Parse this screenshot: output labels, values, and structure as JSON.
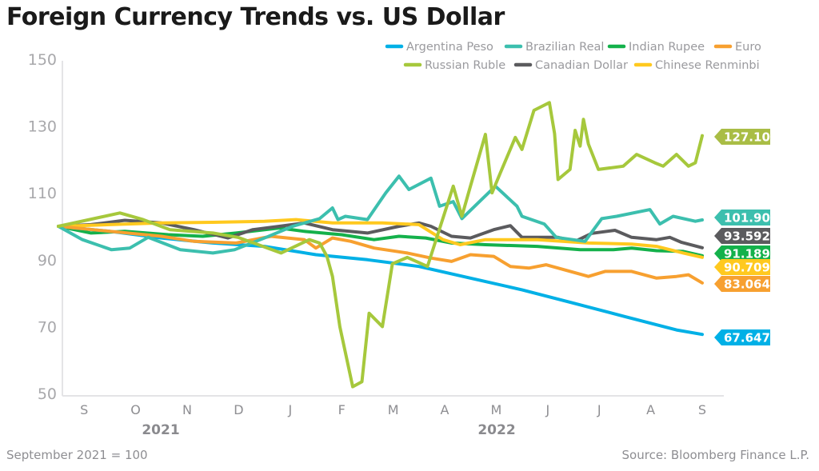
{
  "chart_data": {
    "type": "line",
    "title": "Foreign Currency Trends vs. US Dollar",
    "ylim": [
      50,
      150
    ],
    "yticks": [
      "150",
      "130",
      "110",
      "90",
      "70",
      "50"
    ],
    "x_month_labels": [
      "S",
      "O",
      "N",
      "D",
      "J",
      "F",
      "M",
      "A",
      "M",
      "J",
      "J",
      "A",
      "S"
    ],
    "x_year_labels": [
      "2021",
      "2022"
    ],
    "grid": false,
    "legend_placement": "top-right",
    "note": "September 2021 = 100",
    "source": "Source: Bloomberg Finance L.P.",
    "series": [
      {
        "name": "Argentina Peso",
        "color": "#00b0e6",
        "end_label": "67.647",
        "points": [
          [
            "2021-09-01",
            100
          ],
          [
            "2021-10-01",
            98.5
          ],
          [
            "2021-11-01",
            96.5
          ],
          [
            "2021-12-01",
            95
          ],
          [
            "2022-01-01",
            94
          ],
          [
            "2022-02-01",
            91.5
          ],
          [
            "2022-03-01",
            90
          ],
          [
            "2022-04-01",
            88
          ],
          [
            "2022-05-01",
            84.5
          ],
          [
            "2022-06-01",
            81
          ],
          [
            "2022-07-01",
            77
          ],
          [
            "2022-08-01",
            73
          ],
          [
            "2022-09-01",
            69
          ],
          [
            "2022-09-16",
            67.647
          ]
        ]
      },
      {
        "name": "Brazilian Real",
        "color": "#3cbfae",
        "end_label": "101.904",
        "points": [
          [
            "2021-09-01",
            100
          ],
          [
            "2021-09-15",
            96
          ],
          [
            "2021-10-02",
            93
          ],
          [
            "2021-10-13",
            93.5
          ],
          [
            "2021-10-24",
            96.7
          ],
          [
            "2021-11-12",
            93
          ],
          [
            "2021-12-01",
            92
          ],
          [
            "2021-12-14",
            93
          ],
          [
            "2022-01-02",
            96.7
          ],
          [
            "2022-01-18",
            100
          ],
          [
            "2022-02-03",
            102.3
          ],
          [
            "2022-02-10",
            105.5
          ],
          [
            "2022-02-13",
            102
          ],
          [
            "2022-02-17",
            103
          ],
          [
            "2022-03-01",
            102
          ],
          [
            "2022-03-12",
            110
          ],
          [
            "2022-03-20",
            115
          ],
          [
            "2022-03-26",
            111
          ],
          [
            "2022-04-08",
            114.4
          ],
          [
            "2022-04-13",
            106
          ],
          [
            "2022-04-21",
            107.4
          ],
          [
            "2022-04-26",
            102.3
          ],
          [
            "2022-05-16",
            112
          ],
          [
            "2022-05-29",
            106
          ],
          [
            "2022-06-01",
            103
          ],
          [
            "2022-06-14",
            100.7
          ],
          [
            "2022-06-21",
            96.7
          ],
          [
            "2022-07-08",
            95.5
          ],
          [
            "2022-07-18",
            102.3
          ],
          [
            "2022-07-27",
            103
          ],
          [
            "2022-08-16",
            105
          ],
          [
            "2022-08-22",
            100.7
          ],
          [
            "2022-08-30",
            103
          ],
          [
            "2022-09-12",
            101.5
          ],
          [
            "2022-09-16",
            101.904
          ]
        ]
      },
      {
        "name": "Indian Rupee",
        "color": "#14b14b",
        "end_label": "91.189",
        "points": [
          [
            "2021-09-01",
            100
          ],
          [
            "2021-09-20",
            98
          ],
          [
            "2021-10-10",
            98.5
          ],
          [
            "2021-11-05",
            97.5
          ],
          [
            "2021-11-25",
            97
          ],
          [
            "2021-12-15",
            98
          ],
          [
            "2022-01-10",
            99.5
          ],
          [
            "2022-01-25",
            98.5
          ],
          [
            "2022-02-15",
            97.5
          ],
          [
            "2022-03-05",
            96
          ],
          [
            "2022-03-20",
            97
          ],
          [
            "2022-04-05",
            96.5
          ],
          [
            "2022-04-20",
            95
          ],
          [
            "2022-05-10",
            94.5
          ],
          [
            "2022-06-10",
            94
          ],
          [
            "2022-07-05",
            93
          ],
          [
            "2022-07-25",
            93
          ],
          [
            "2022-08-05",
            93.5
          ],
          [
            "2022-08-20",
            92.7
          ],
          [
            "2022-09-05",
            92.5
          ],
          [
            "2022-09-16",
            91.189
          ]
        ]
      },
      {
        "name": "Euro",
        "color": "#f7a030",
        "end_label": "83.064",
        "points": [
          [
            "2021-09-01",
            100
          ],
          [
            "2021-10-01",
            98.5
          ],
          [
            "2021-11-01",
            97
          ],
          [
            "2021-11-20",
            95.5
          ],
          [
            "2021-12-15",
            95
          ],
          [
            "2022-01-05",
            97
          ],
          [
            "2022-01-25",
            96
          ],
          [
            "2022-02-01",
            93.5
          ],
          [
            "2022-02-10",
            96.5
          ],
          [
            "2022-02-20",
            95.5
          ],
          [
            "2022-03-05",
            93.5
          ],
          [
            "2022-03-25",
            92
          ],
          [
            "2022-04-08",
            90.5
          ],
          [
            "2022-04-20",
            89.5
          ],
          [
            "2022-05-01",
            91.5
          ],
          [
            "2022-05-15",
            91
          ],
          [
            "2022-05-25",
            88
          ],
          [
            "2022-06-05",
            87.5
          ],
          [
            "2022-06-15",
            88.5
          ],
          [
            "2022-07-10",
            85
          ],
          [
            "2022-07-20",
            86.5
          ],
          [
            "2022-08-05",
            86.5
          ],
          [
            "2022-08-20",
            84.5
          ],
          [
            "2022-09-01",
            85
          ],
          [
            "2022-09-08",
            85.5
          ],
          [
            "2022-09-16",
            83.064
          ]
        ]
      },
      {
        "name": "Russian Ruble",
        "color": "#a6c83c",
        "end_label": "127.107",
        "points": [
          [
            "2021-09-01",
            100
          ],
          [
            "2021-10-07",
            104
          ],
          [
            "2021-10-21",
            102
          ],
          [
            "2021-11-06",
            99
          ],
          [
            "2021-12-01",
            98
          ],
          [
            "2021-12-16",
            96.7
          ],
          [
            "2022-01-11",
            92
          ],
          [
            "2022-01-28",
            96
          ],
          [
            "2022-02-03",
            95
          ],
          [
            "2022-02-07",
            91
          ],
          [
            "2022-02-10",
            85
          ],
          [
            "2022-02-14",
            70
          ],
          [
            "2022-02-21",
            52
          ],
          [
            "2022-02-26",
            53.5
          ],
          [
            "2022-03-02",
            74
          ],
          [
            "2022-03-08",
            71
          ],
          [
            "2022-03-10",
            70
          ],
          [
            "2022-03-16",
            88.8
          ],
          [
            "2022-03-25",
            90.7
          ],
          [
            "2022-04-06",
            88
          ],
          [
            "2022-04-21",
            112
          ],
          [
            "2022-04-26",
            103
          ],
          [
            "2022-05-01",
            112
          ],
          [
            "2022-05-10",
            127.5
          ],
          [
            "2022-05-14",
            110
          ],
          [
            "2022-05-19",
            116
          ],
          [
            "2022-05-28",
            126.6
          ],
          [
            "2022-06-01",
            123
          ],
          [
            "2022-06-08",
            134.7
          ],
          [
            "2022-06-17",
            137
          ],
          [
            "2022-06-20",
            127.7
          ],
          [
            "2022-06-22",
            114
          ],
          [
            "2022-06-29",
            117
          ],
          [
            "2022-07-02",
            128.7
          ],
          [
            "2022-07-05",
            124
          ],
          [
            "2022-07-07",
            132
          ],
          [
            "2022-07-10",
            124.6
          ],
          [
            "2022-07-16",
            117
          ],
          [
            "2022-07-31",
            118
          ],
          [
            "2022-08-08",
            121.5
          ],
          [
            "2022-08-19",
            119
          ],
          [
            "2022-08-24",
            118
          ],
          [
            "2022-09-01",
            121.5
          ],
          [
            "2022-09-08",
            118
          ],
          [
            "2022-09-12",
            119
          ],
          [
            "2022-09-16",
            127.107
          ]
        ]
      },
      {
        "name": "Canadian Dollar",
        "color": "#5b5b5e",
        "end_label": "93.592",
        "points": [
          [
            "2021-09-01",
            100
          ],
          [
            "2021-09-20",
            100.5
          ],
          [
            "2021-10-10",
            101.8
          ],
          [
            "2021-11-01",
            101
          ],
          [
            "2021-11-20",
            99
          ],
          [
            "2021-12-10",
            96.5
          ],
          [
            "2021-12-25",
            99
          ],
          [
            "2022-01-10",
            100
          ],
          [
            "2022-01-25",
            101
          ],
          [
            "2022-02-10",
            99
          ],
          [
            "2022-03-01",
            98
          ],
          [
            "2022-03-20",
            100
          ],
          [
            "2022-04-01",
            101
          ],
          [
            "2022-04-08",
            100
          ],
          [
            "2022-04-20",
            97
          ],
          [
            "2022-05-01",
            96.5
          ],
          [
            "2022-05-15",
            99
          ],
          [
            "2022-05-25",
            100.2
          ],
          [
            "2022-06-01",
            96.7
          ],
          [
            "2022-06-22",
            96.7
          ],
          [
            "2022-07-02",
            95.5
          ],
          [
            "2022-07-12",
            97.9
          ],
          [
            "2022-07-26",
            98.8
          ],
          [
            "2022-08-05",
            96.7
          ],
          [
            "2022-08-20",
            96
          ],
          [
            "2022-08-28",
            96.7
          ],
          [
            "2022-09-04",
            95.2
          ],
          [
            "2022-09-16",
            93.592
          ]
        ]
      },
      {
        "name": "Chinese Renminbi",
        "color": "#ffc91f",
        "end_label": "90.709",
        "points": [
          [
            "2021-09-01",
            100
          ],
          [
            "2021-10-01",
            100.5
          ],
          [
            "2021-11-01",
            101
          ],
          [
            "2021-12-01",
            101.2
          ],
          [
            "2022-01-01",
            101.5
          ],
          [
            "2022-01-20",
            102
          ],
          [
            "2022-02-10",
            101
          ],
          [
            "2022-03-10",
            101
          ],
          [
            "2022-04-01",
            100.5
          ],
          [
            "2022-04-15",
            96
          ],
          [
            "2022-04-25",
            94.5
          ],
          [
            "2022-05-10",
            96
          ],
          [
            "2022-06-10",
            96
          ],
          [
            "2022-07-10",
            95
          ],
          [
            "2022-08-05",
            94.7
          ],
          [
            "2022-08-20",
            94
          ],
          [
            "2022-09-05",
            92
          ],
          [
            "2022-09-16",
            90.709
          ]
        ]
      }
    ]
  }
}
